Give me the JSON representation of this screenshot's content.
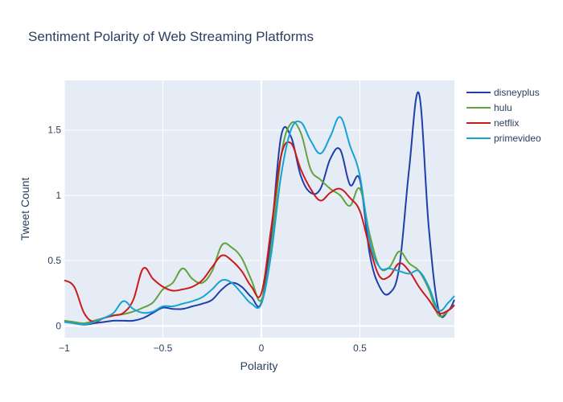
{
  "chart_data": {
    "type": "line",
    "title": "Sentiment Polarity of Web Streaming Platforms",
    "xlabel": "Polarity",
    "ylabel": "Tweet Count",
    "xlim": [
      -1,
      0.98
    ],
    "ylim": [
      -0.09,
      1.88
    ],
    "x_ticks": [
      -1,
      -0.5,
      0,
      0.5
    ],
    "x_tick_labels": [
      "−1",
      "−0.5",
      "0",
      "0.5"
    ],
    "y_ticks": [
      0,
      0.5,
      1,
      1.5
    ],
    "y_tick_labels": [
      "0",
      "0.5",
      "1",
      "1.5"
    ],
    "grid": true,
    "legend_position": "top-right",
    "x": [
      -1,
      -0.95,
      -0.9,
      -0.85,
      -0.8,
      -0.75,
      -0.7,
      -0.65,
      -0.6,
      -0.55,
      -0.5,
      -0.45,
      -0.4,
      -0.35,
      -0.3,
      -0.25,
      -0.2,
      -0.15,
      -0.1,
      -0.05,
      0,
      0.05,
      0.1,
      0.15,
      0.2,
      0.25,
      0.3,
      0.35,
      0.4,
      0.45,
      0.5,
      0.55,
      0.6,
      0.65,
      0.7,
      0.75,
      0.8,
      0.85,
      0.9,
      0.95,
      0.98
    ],
    "series": [
      {
        "name": "disneyplus",
        "color": "#1f3fa8",
        "values": [
          0.04,
          0.02,
          0.01,
          0.02,
          0.03,
          0.04,
          0.04,
          0.04,
          0.06,
          0.1,
          0.14,
          0.13,
          0.13,
          0.15,
          0.17,
          0.2,
          0.28,
          0.33,
          0.3,
          0.22,
          0.18,
          0.7,
          1.45,
          1.45,
          1.15,
          1.02,
          1.05,
          1.28,
          1.35,
          1.08,
          1.12,
          0.55,
          0.3,
          0.25,
          0.45,
          1.2,
          1.78,
          0.75,
          0.12,
          0.12,
          0.2
        ]
      },
      {
        "name": "hulu",
        "color": "#64a23c",
        "values": [
          0.04,
          0.03,
          0.02,
          0.04,
          0.06,
          0.08,
          0.09,
          0.11,
          0.14,
          0.18,
          0.28,
          0.33,
          0.44,
          0.36,
          0.33,
          0.42,
          0.62,
          0.6,
          0.52,
          0.35,
          0.2,
          0.6,
          1.3,
          1.55,
          1.48,
          1.2,
          1.12,
          1.05,
          1.0,
          0.92,
          1.05,
          0.7,
          0.45,
          0.45,
          0.57,
          0.48,
          0.42,
          0.28,
          0.08,
          0.12,
          0.16
        ]
      },
      {
        "name": "netflix",
        "color": "#cc1a1a",
        "values": [
          0.35,
          0.3,
          0.1,
          0.03,
          0.06,
          0.08,
          0.1,
          0.2,
          0.44,
          0.36,
          0.3,
          0.27,
          0.28,
          0.3,
          0.35,
          0.45,
          0.54,
          0.5,
          0.42,
          0.3,
          0.25,
          0.75,
          1.3,
          1.4,
          1.2,
          1.05,
          0.96,
          1.02,
          1.05,
          0.98,
          0.88,
          0.6,
          0.38,
          0.38,
          0.48,
          0.42,
          0.3,
          0.2,
          0.1,
          0.12,
          0.16
        ]
      },
      {
        "name": "primevideo",
        "color": "#17a2d4",
        "values": [
          0.03,
          0.02,
          0.01,
          0.03,
          0.06,
          0.1,
          0.19,
          0.13,
          0.1,
          0.11,
          0.15,
          0.15,
          0.17,
          0.19,
          0.22,
          0.28,
          0.35,
          0.33,
          0.25,
          0.17,
          0.17,
          0.55,
          1.15,
          1.5,
          1.56,
          1.42,
          1.32,
          1.45,
          1.6,
          1.38,
          1.15,
          0.65,
          0.45,
          0.44,
          0.42,
          0.4,
          0.42,
          0.3,
          0.12,
          0.18,
          0.23
        ]
      }
    ]
  }
}
